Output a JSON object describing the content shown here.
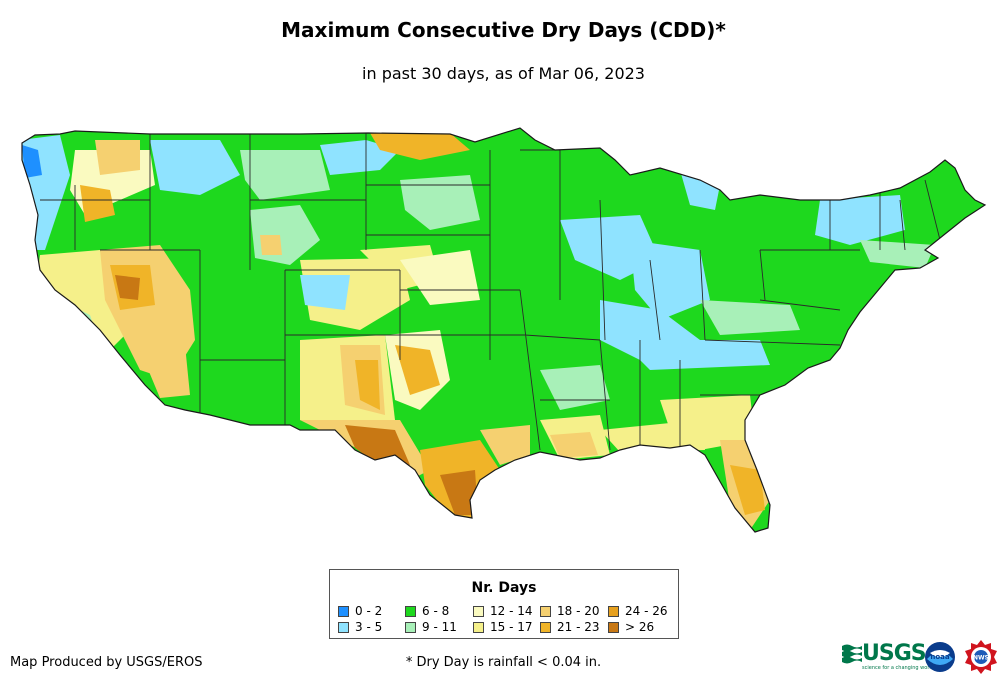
{
  "title": "Maximum Consecutive Dry Days (CDD)*",
  "subtitle": "in past 30 days, as of Mar 06, 2023",
  "legend": {
    "title": "Nr. Days",
    "classes": [
      {
        "label": "0 - 2",
        "color": "#1e90ff"
      },
      {
        "label": "3 - 5",
        "color": "#8fe3ff"
      },
      {
        "label": "6 - 8",
        "color": "#1ed81e"
      },
      {
        "label": "9 - 11",
        "color": "#a8f0b8"
      },
      {
        "label": "12 - 14",
        "color": "#fafac0"
      },
      {
        "label": "15 - 17",
        "color": "#f5f08a"
      },
      {
        "label": "18 - 20",
        "color": "#f5d070"
      },
      {
        "label": "21 - 23",
        "color": "#f0b428"
      },
      {
        "label": "24 - 26",
        "color": "#e6a01e"
      },
      {
        "label": "> 26",
        "color": "#c87814"
      }
    ]
  },
  "credit": "Map Produced by USGS/EROS",
  "footnote": "* Dry Day is rainfall < 0.04 in.",
  "logos": {
    "usgs": "USGS",
    "usgs_tagline": "science for a changing world",
    "noaa": "noaa",
    "nws": "NWS"
  }
}
